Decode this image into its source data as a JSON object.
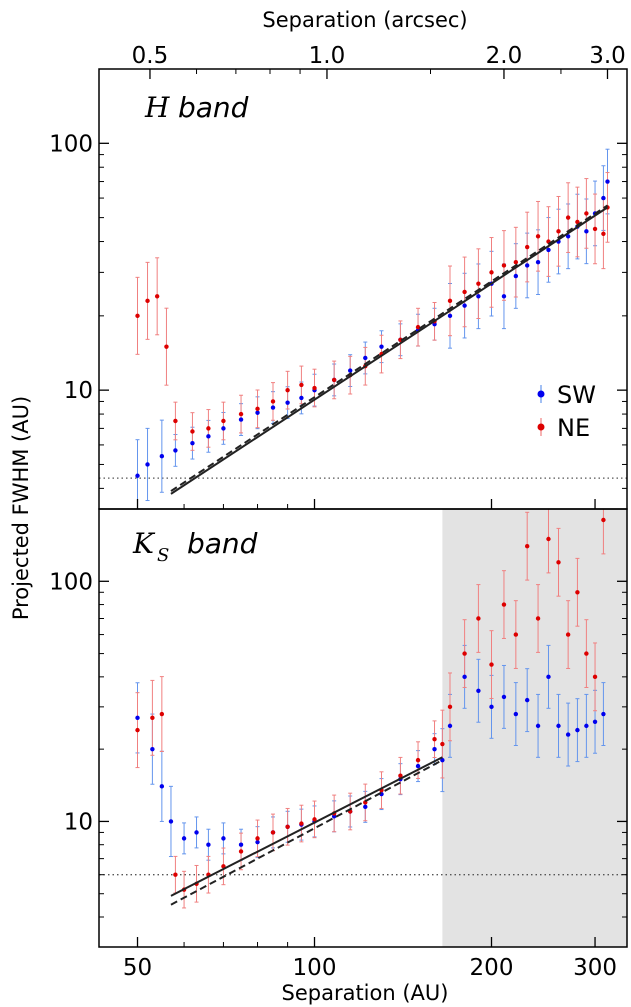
{
  "figure": {
    "top_xlabel": "Separation (arcsec)",
    "bottom_xlabel": "Separation (AU)",
    "ylabel": "Projected FWHM (AU)"
  },
  "colors": {
    "sw": "#0000ee",
    "sw_err": "#6495ed",
    "ne": "#dd0000",
    "ne_err": "#f08080",
    "fit": "#222222",
    "shade": "#e3e3e3"
  },
  "chart_data": [
    {
      "type": "scatter",
      "panel": "top",
      "band_symbol": "H",
      "band_word": "band",
      "xscale": "log",
      "yscale": "log",
      "xlim": [
        43,
        340
      ],
      "ylim": [
        3.3,
        200
      ],
      "x_ticks": [
        50,
        100,
        200,
        300
      ],
      "y_ticks": [
        10,
        100
      ],
      "y_tick_labels": [
        "10",
        "100"
      ],
      "top_axis": {
        "label": "Separation (arcsec)",
        "ticks": [
          {
            "label": "0.5",
            "au": 52.5
          },
          {
            "label": "1.0",
            "au": 105
          },
          {
            "label": "2.0",
            "au": 210
          },
          {
            "label": "3.0",
            "au": 315
          }
        ]
      },
      "legend": {
        "position": "right",
        "entries": [
          "SW",
          "NE"
        ]
      },
      "resolution_limit": 4.4,
      "fits": [
        {
          "style": "solid",
          "x": [
            57,
            315
          ],
          "y": [
            3.8,
            55
          ]
        },
        {
          "style": "dashed",
          "x": [
            57,
            315
          ],
          "y": [
            3.9,
            56
          ]
        }
      ],
      "series": [
        {
          "name": "SW",
          "x": [
            50,
            52,
            55,
            58,
            62,
            66,
            70,
            75,
            80,
            85,
            90,
            95,
            100,
            108,
            115,
            122,
            130,
            140,
            150,
            160,
            170,
            180,
            190,
            200,
            210,
            220,
            230,
            240,
            250,
            260,
            270,
            280,
            290,
            300,
            310,
            315
          ],
          "y": [
            4.5,
            5.0,
            5.4,
            5.7,
            6.1,
            6.5,
            7.0,
            7.6,
            8.1,
            8.5,
            8.9,
            9.3,
            10.0,
            11.0,
            12.0,
            13.5,
            15.0,
            16.0,
            17.5,
            18.5,
            20.0,
            22.0,
            24.0,
            27.0,
            24.0,
            29.0,
            32.0,
            33.0,
            37.0,
            40.0,
            42.0,
            46.0,
            44.0,
            52.0,
            60.0,
            70.0
          ]
        },
        {
          "name": "NE",
          "x": [
            50,
            52,
            54,
            56,
            58,
            62,
            66,
            70,
            75,
            80,
            85,
            90,
            95,
            100,
            108,
            115,
            122,
            130,
            140,
            150,
            160,
            170,
            180,
            190,
            200,
            210,
            220,
            230,
            240,
            250,
            260,
            270,
            280,
            290,
            300,
            310,
            315
          ],
          "y": [
            20.0,
            23.0,
            24.0,
            15.0,
            7.5,
            6.8,
            7.0,
            7.5,
            8.0,
            8.4,
            9.0,
            10.0,
            10.5,
            10.2,
            11.0,
            11.5,
            12.5,
            14.0,
            16.0,
            18.0,
            19.0,
            23.0,
            25.0,
            27.0,
            30.0,
            32.0,
            33.0,
            38.0,
            42.0,
            40.0,
            44.0,
            50.0,
            48.0,
            52.0,
            45.0,
            43.0,
            55.0
          ]
        }
      ]
    },
    {
      "type": "scatter",
      "panel": "bottom",
      "band_symbol": "K",
      "band_subscript": "S",
      "band_word": "band",
      "xscale": "log",
      "yscale": "log",
      "xlim": [
        43,
        340
      ],
      "ylim": [
        3.0,
        200
      ],
      "x_ticks": [
        50,
        100,
        200,
        300
      ],
      "x_tick_labels": [
        "50",
        "100",
        "200",
        "300"
      ],
      "y_ticks": [
        10,
        100
      ],
      "y_tick_labels": [
        "10",
        "100"
      ],
      "shaded_region": [
        165,
        340
      ],
      "resolution_limit": 6.0,
      "fits": [
        {
          "style": "solid",
          "x": [
            57,
            165
          ],
          "y": [
            4.9,
            18.5
          ]
        },
        {
          "style": "dashed",
          "x": [
            57,
            165
          ],
          "y": [
            4.5,
            18.0
          ]
        }
      ],
      "series": [
        {
          "name": "SW",
          "x": [
            50,
            53,
            55,
            57,
            60,
            63,
            66,
            70,
            75,
            80,
            85,
            90,
            95,
            100,
            108,
            115,
            122,
            130,
            140,
            150,
            160,
            165,
            170,
            180,
            190,
            200,
            210,
            220,
            230,
            240,
            250,
            260,
            270,
            280,
            290,
            300,
            310
          ],
          "y": [
            27.0,
            20.0,
            14.0,
            10.0,
            8.5,
            9.0,
            8.0,
            8.5,
            8.0,
            8.2,
            9.0,
            9.5,
            9.7,
            10.0,
            10.5,
            11.0,
            11.5,
            13.0,
            15.0,
            17.0,
            20.0,
            18.0,
            25.0,
            40.0,
            35.0,
            30.0,
            33.0,
            28.0,
            32.0,
            25.0,
            40.0,
            25.0,
            23.0,
            24.0,
            25.0,
            26.0,
            28.0
          ]
        },
        {
          "name": "NE",
          "x": [
            50,
            53,
            55,
            58,
            60,
            63,
            66,
            70,
            75,
            80,
            85,
            90,
            95,
            100,
            108,
            115,
            122,
            130,
            140,
            150,
            160,
            165,
            170,
            180,
            190,
            200,
            210,
            220,
            230,
            240,
            250,
            260,
            270,
            280,
            290,
            300,
            310
          ],
          "y": [
            24.0,
            27.0,
            28.0,
            6.0,
            5.2,
            5.5,
            6.0,
            6.5,
            7.5,
            8.5,
            9.0,
            9.5,
            9.8,
            10.2,
            10.8,
            11.0,
            12.0,
            13.5,
            15.5,
            18.0,
            22.0,
            21.0,
            30.0,
            50.0,
            70.0,
            45.0,
            80.0,
            60.0,
            140.0,
            70.0,
            150.0,
            120.0,
            60.0,
            90.0,
            50.0,
            40.0,
            180.0
          ]
        }
      ]
    }
  ]
}
